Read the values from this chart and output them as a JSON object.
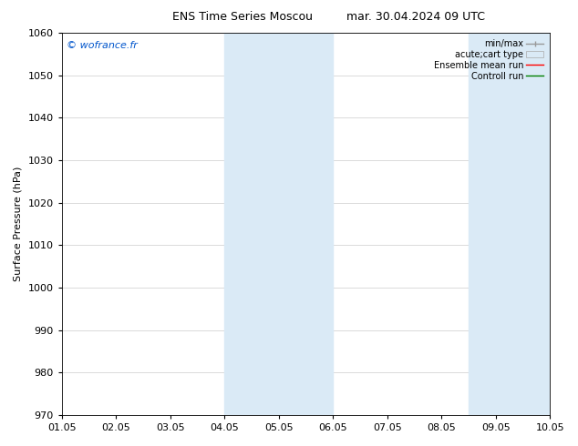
{
  "title_left": "ENS Time Series Moscou",
  "title_right": "mar. 30.04.2024 09 UTC",
  "ylabel": "Surface Pressure (hPa)",
  "ylim": [
    970,
    1060
  ],
  "yticks": [
    970,
    980,
    990,
    1000,
    1010,
    1020,
    1030,
    1040,
    1050,
    1060
  ],
  "xtick_labels": [
    "01.05",
    "02.05",
    "03.05",
    "04.05",
    "05.05",
    "06.05",
    "07.05",
    "08.05",
    "09.05",
    "10.05"
  ],
  "xtick_positions": [
    0,
    1,
    2,
    3,
    4,
    5,
    6,
    7,
    8,
    9
  ],
  "xlim": [
    0,
    9
  ],
  "shaded_groups": [
    {
      "xmin": 3.0,
      "xmax": 3.5
    },
    {
      "xmin": 3.5,
      "xmax": 4.0
    },
    {
      "xmin": 4.0,
      "xmax": 5.0
    },
    {
      "xmin": 7.5,
      "xmax": 8.0
    },
    {
      "xmin": 8.0,
      "xmax": 9.0
    }
  ],
  "shaded_color": "#daeaf6",
  "watermark": "© wofrance.fr",
  "watermark_color": "#0055cc",
  "bg_color": "#ffffff",
  "grid_color": "#cccccc",
  "font_size": 8,
  "title_fontsize": 9,
  "ylabel_fontsize": 8
}
